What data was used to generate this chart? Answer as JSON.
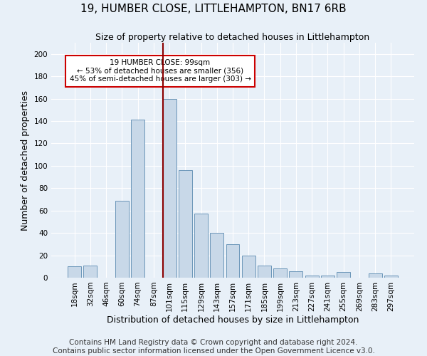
{
  "title": "19, HUMBER CLOSE, LITTLEHAMPTON, BN17 6RB",
  "subtitle": "Size of property relative to detached houses in Littlehampton",
  "xlabel": "Distribution of detached houses by size in Littlehampton",
  "ylabel": "Number of detached properties",
  "footer_line1": "Contains HM Land Registry data © Crown copyright and database right 2024.",
  "footer_line2": "Contains public sector information licensed under the Open Government Licence v3.0.",
  "bin_labels": [
    "18sqm",
    "32sqm",
    "46sqm",
    "60sqm",
    "74sqm",
    "87sqm",
    "101sqm",
    "115sqm",
    "129sqm",
    "143sqm",
    "157sqm",
    "171sqm",
    "185sqm",
    "199sqm",
    "213sqm",
    "227sqm",
    "241sqm",
    "255sqm",
    "269sqm",
    "283sqm",
    "297sqm"
  ],
  "bar_values": [
    10,
    11,
    0,
    69,
    141,
    0,
    160,
    96,
    57,
    40,
    30,
    20,
    11,
    8,
    6,
    2,
    2,
    5,
    0,
    4,
    2
  ],
  "bar_color": "#c8d8e8",
  "bar_edge_color": "#5a8ab0",
  "property_line_idx": 6.0,
  "property_line_color": "#8b0000",
  "annotation_line1": "19 HUMBER CLOSE: 99sqm",
  "annotation_line2": "← 53% of detached houses are smaller (356)",
  "annotation_line3": "45% of semi-detached houses are larger (303) →",
  "annotation_box_color": "#ffffff",
  "annotation_box_edge": "#cc0000",
  "ylim": [
    0,
    210
  ],
  "yticks": [
    0,
    20,
    40,
    60,
    80,
    100,
    120,
    140,
    160,
    180,
    200
  ],
  "bg_color": "#e8f0f8",
  "plot_bg_color": "#e8f0f8",
  "grid_color": "#ffffff",
  "title_fontsize": 11,
  "subtitle_fontsize": 9,
  "xlabel_fontsize": 9,
  "ylabel_fontsize": 9,
  "tick_fontsize": 7.5,
  "footer_fontsize": 7.5
}
